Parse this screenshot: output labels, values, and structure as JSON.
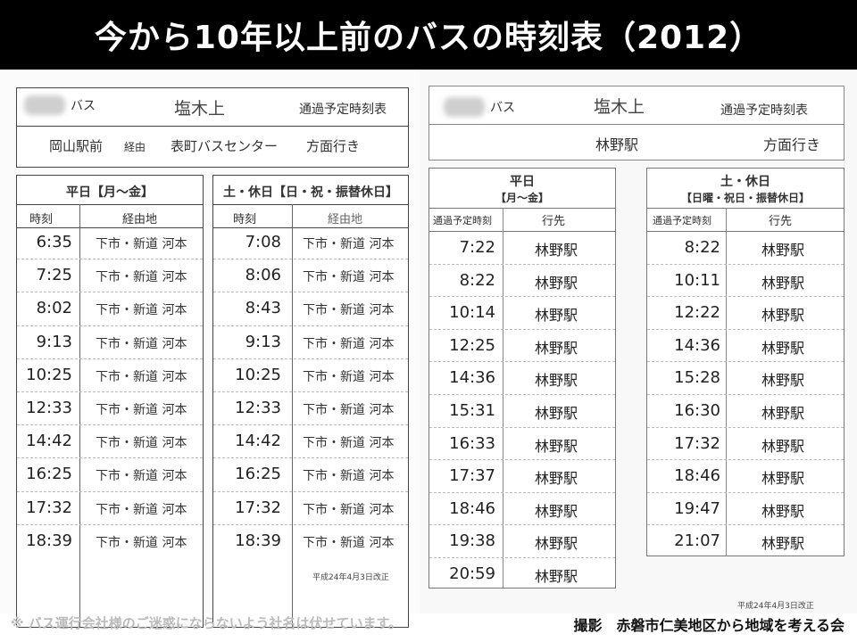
{
  "banner": {
    "title": "今から10年以上前のバスの時刻表（2012）"
  },
  "left": {
    "header": {
      "company_suffix": "バス",
      "stop": "塩木上",
      "type": "通過予定時刻表",
      "route_from": "岡山駅前",
      "route_via": "経由",
      "route_to": "表町バスセンター",
      "direction": "方面行き"
    },
    "weekday": {
      "title": "平日【月～金】",
      "col_time": "時刻",
      "col_via": "経由地",
      "rows": [
        {
          "time": "6:35",
          "via": "下市・新道 河本"
        },
        {
          "time": "7:25",
          "via": "下市・新道 河本"
        },
        {
          "time": "8:02",
          "via": "下市・新道 河本"
        },
        {
          "time": "9:13",
          "via": "下市・新道 河本"
        },
        {
          "time": "10:25",
          "via": "下市・新道 河本"
        },
        {
          "time": "12:33",
          "via": "下市・新道 河本"
        },
        {
          "time": "14:42",
          "via": "下市・新道 河本"
        },
        {
          "time": "16:25",
          "via": "下市・新道 河本"
        },
        {
          "time": "17:32",
          "via": "下市・新道 河本"
        },
        {
          "time": "18:39",
          "via": "下市・新道 河本"
        }
      ]
    },
    "holiday": {
      "title": "土・休日【日・祝・振替休日】",
      "col_time": "時刻",
      "col_via": "経由地",
      "rows": [
        {
          "time": "7:08",
          "via": "下市・新道 河本"
        },
        {
          "time": "8:06",
          "via": "下市・新道 河本"
        },
        {
          "time": "8:43",
          "via": "下市・新道 河本"
        },
        {
          "time": "9:13",
          "via": "下市・新道 河本"
        },
        {
          "time": "10:25",
          "via": "下市・新道 河本"
        },
        {
          "time": "12:33",
          "via": "下市・新道 河本"
        },
        {
          "time": "14:42",
          "via": "下市・新道 河本"
        },
        {
          "time": "16:25",
          "via": "下市・新道 河本"
        },
        {
          "time": "17:32",
          "via": "下市・新道 河本"
        },
        {
          "time": "18:39",
          "via": "下市・新道 河本"
        }
      ]
    },
    "revision": "平成24年4月3日改正"
  },
  "right": {
    "header": {
      "company_suffix": "バス",
      "stop": "塩木上",
      "type": "通過予定時刻表",
      "destination": "林野駅",
      "direction": "方面行き"
    },
    "weekday": {
      "title": "平日",
      "subtitle": "【月～金】",
      "col_time": "通過予定時刻",
      "col_dest": "行先",
      "rows": [
        {
          "time": "7:22",
          "dest": "林野駅"
        },
        {
          "time": "8:22",
          "dest": "林野駅"
        },
        {
          "time": "10:14",
          "dest": "林野駅"
        },
        {
          "time": "12:25",
          "dest": "林野駅"
        },
        {
          "time": "14:36",
          "dest": "林野駅"
        },
        {
          "time": "15:31",
          "dest": "林野駅"
        },
        {
          "time": "16:33",
          "dest": "林野駅"
        },
        {
          "time": "17:37",
          "dest": "林野駅"
        },
        {
          "time": "18:46",
          "dest": "林野駅"
        },
        {
          "time": "19:38",
          "dest": "林野駅"
        },
        {
          "time": "20:59",
          "dest": "林野駅"
        }
      ]
    },
    "holiday": {
      "title": "土・休日",
      "subtitle": "【日曜・祝日・振替休日】",
      "col_time": "通過予定時刻",
      "col_dest": "行先",
      "rows": [
        {
          "time": "8:22",
          "dest": "林野駅"
        },
        {
          "time": "10:11",
          "dest": "林野駅"
        },
        {
          "time": "12:22",
          "dest": "林野駅"
        },
        {
          "time": "14:36",
          "dest": "林野駅"
        },
        {
          "time": "15:28",
          "dest": "林野駅"
        },
        {
          "time": "16:30",
          "dest": "林野駅"
        },
        {
          "time": "17:32",
          "dest": "林野駅"
        },
        {
          "time": "18:46",
          "dest": "林野駅"
        },
        {
          "time": "19:47",
          "dest": "林野駅"
        },
        {
          "time": "21:07",
          "dest": "林野駅"
        }
      ]
    },
    "revision": "平成24年4月3日改正"
  },
  "footer": {
    "note": "※ バス運行会社様のご迷惑にならないよう社名は伏せています。",
    "credit": "撮影　赤磐市仁美地区から地域を考える会"
  }
}
